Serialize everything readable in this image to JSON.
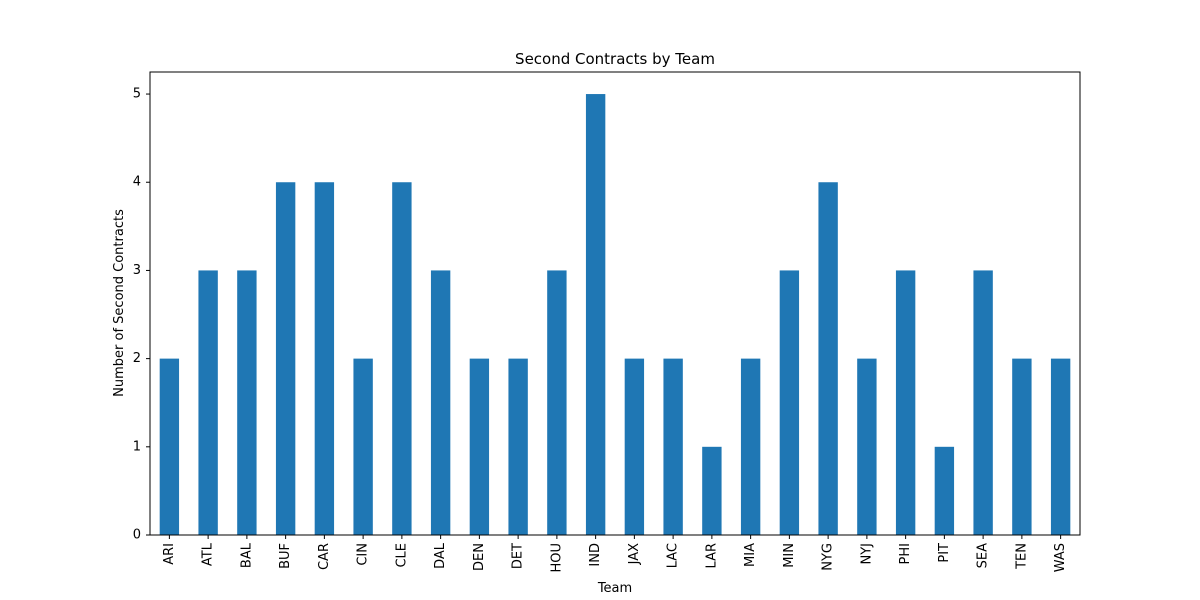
{
  "chart_data": {
    "type": "bar",
    "title": "Second Contracts by Team",
    "xlabel": "Team",
    "ylabel": "Number of Second Contracts",
    "categories": [
      "ARI",
      "ATL",
      "BAL",
      "BUF",
      "CAR",
      "CIN",
      "CLE",
      "DAL",
      "DEN",
      "DET",
      "HOU",
      "IND",
      "JAX",
      "LAC",
      "LAR",
      "MIA",
      "MIN",
      "NYG",
      "NYJ",
      "PHI",
      "PIT",
      "SEA",
      "TEN",
      "WAS"
    ],
    "values": [
      2,
      3,
      3,
      4,
      4,
      2,
      4,
      3,
      2,
      2,
      3,
      5,
      2,
      2,
      1,
      2,
      3,
      4,
      2,
      3,
      1,
      3,
      2,
      2
    ],
    "yticks": [
      0,
      1,
      2,
      3,
      4,
      5
    ],
    "ylim": [
      0,
      5.25
    ],
    "bar_color": "#1f77b4",
    "grid": false,
    "legend": "none"
  }
}
